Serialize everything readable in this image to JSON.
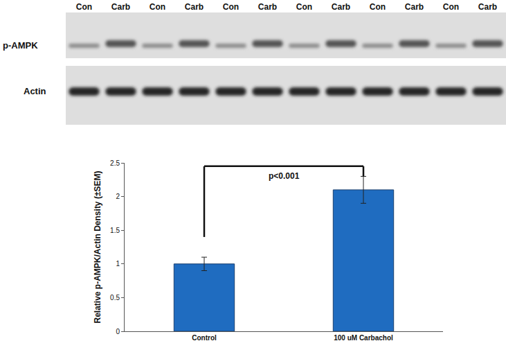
{
  "blot": {
    "lanes": [
      "Con",
      "Carb",
      "Con",
      "Carb",
      "Con",
      "Carb",
      "Con",
      "Carb",
      "Con",
      "Carb",
      "Con",
      "Carb"
    ],
    "rows": [
      "p-AMPK",
      "Actin"
    ]
  },
  "chart_data": {
    "type": "bar",
    "categories": [
      "Control",
      "100 uM Carbachol"
    ],
    "values": [
      1.0,
      2.1
    ],
    "errors": [
      0.1,
      0.2
    ],
    "color": "#1f6cc0",
    "y_label": "Relative p-AMPK/Actin Density (±SEM)",
    "annotations": [
      "p<0.001"
    ],
    "ylim": [
      0,
      2.5
    ],
    "yticks": [
      0,
      0.5,
      1,
      1.5,
      2,
      2.5
    ],
    "grid": false
  }
}
